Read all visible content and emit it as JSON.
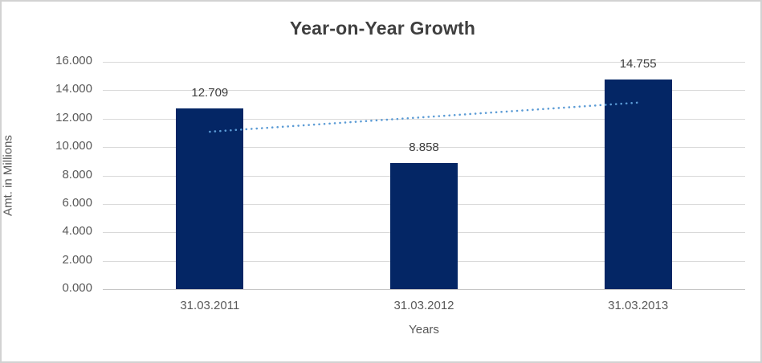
{
  "chart_data": {
    "type": "bar",
    "title": "Year-on-Year Growth",
    "categories": [
      "31.03.2011",
      "31.03.2012",
      "31.03.2013"
    ],
    "values": [
      12.709,
      8.858,
      14.755
    ],
    "data_labels": [
      "12.709",
      "8.858",
      "14.755"
    ],
    "xlabel": "Years",
    "ylabel": "Amt. in Millions",
    "ylim": [
      0,
      16
    ],
    "ytick_step": 2,
    "ytick_labels": [
      "0.000",
      "2.000",
      "4.000",
      "6.000",
      "8.000",
      "10.000",
      "12.000",
      "14.000",
      "16.000"
    ],
    "grid": true,
    "legend": "none",
    "colors": {
      "bar": "#042665",
      "trendline": "#5b9bd5",
      "gridline": "#d9d9d9",
      "axis_line": "#c6c6c6",
      "title_text": "#3f3f3f",
      "tick_text": "#595959",
      "data_label_text": "#404040",
      "frame_border": "#d2d2d2"
    },
    "trendline": {
      "type": "linear",
      "style": "dotted",
      "start_value": 11.08,
      "end_value": 13.13
    }
  }
}
